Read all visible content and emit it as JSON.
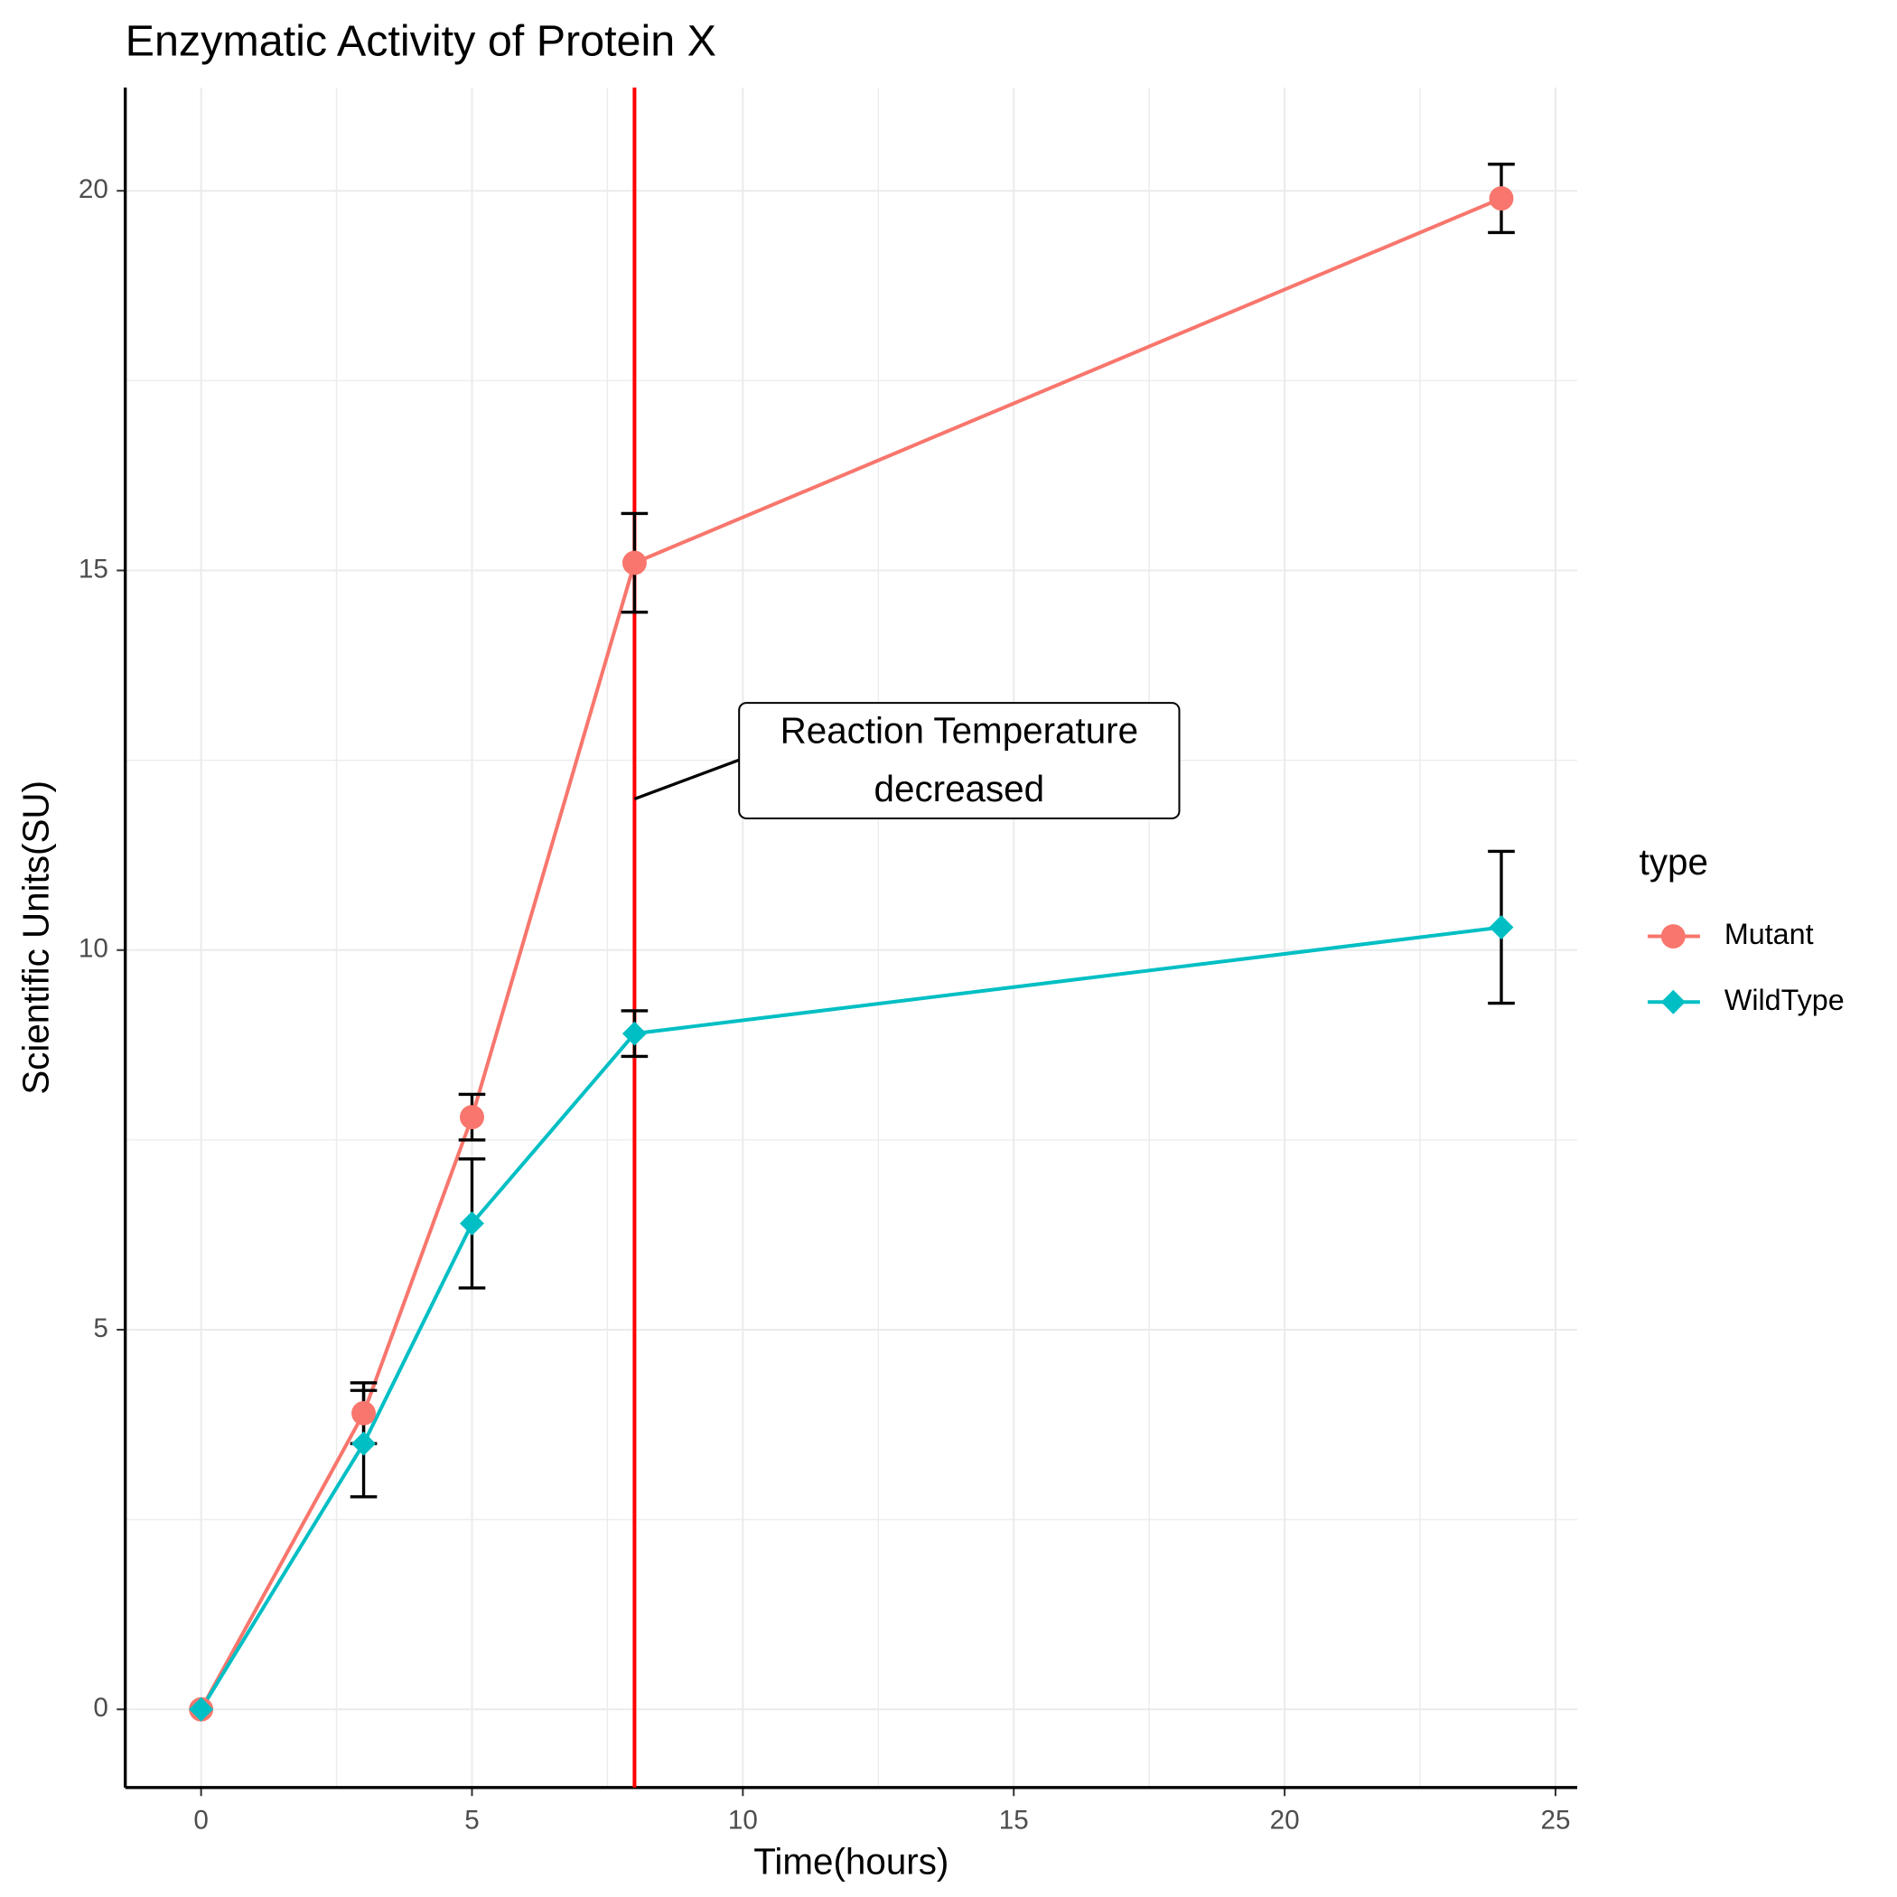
{
  "chart_data": {
    "type": "line",
    "title": "Enzymatic Activity of Protein X",
    "x_label": "Time(hours)",
    "y_label": "Scientific Units(SU)",
    "x": [
      0,
      3,
      5,
      8,
      24
    ],
    "series": [
      {
        "name": "Mutant",
        "color": "#F8766D",
        "marker": "circle",
        "values": [
          0,
          3.9,
          7.8,
          15.1,
          19.9
        ],
        "errors": [
          0,
          0.4,
          0.3,
          0.65,
          0.45
        ]
      },
      {
        "name": "WildType",
        "color": "#00BFC4",
        "marker": "diamond",
        "values": [
          0,
          3.5,
          6.4,
          8.9,
          10.3
        ],
        "errors": [
          0,
          0.7,
          0.85,
          0.3,
          1.0
        ]
      }
    ],
    "xlim": [
      -1.4,
      25.4
    ],
    "ylim": [
      -1.03,
      21.36
    ],
    "xticks": [
      0,
      5,
      10,
      15,
      20,
      25
    ],
    "yticks": [
      0,
      5,
      10,
      15,
      20
    ],
    "grid": true,
    "legend_title": "type",
    "legend_position": "right",
    "vline": {
      "x": 8,
      "color": "#FF0000"
    },
    "annotation": {
      "lines": [
        "Reaction Temperature",
        "decreased"
      ]
    }
  }
}
